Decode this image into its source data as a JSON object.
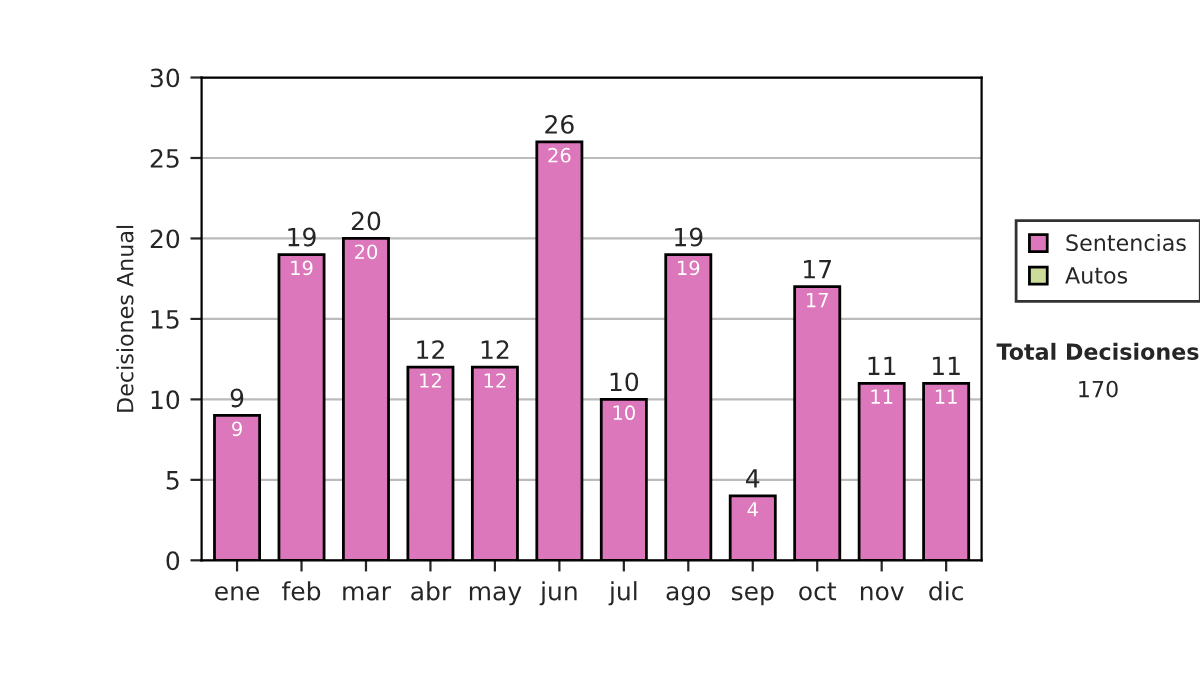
{
  "chart_data": {
    "type": "bar",
    "ylabel": "Decisiones Anual",
    "categories": [
      "ene",
      "feb",
      "mar",
      "abr",
      "may",
      "jun",
      "jul",
      "ago",
      "sep",
      "oct",
      "nov",
      "dic"
    ],
    "series": [
      {
        "name": "Sentencias",
        "color": "#dd77bb",
        "values": [
          9,
          19,
          20,
          12,
          12,
          26,
          10,
          19,
          4,
          17,
          11,
          11
        ],
        "value_labels": [
          "9",
          "19",
          "20",
          "12",
          "12",
          "26",
          "10",
          "19",
          "4",
          "17",
          "11",
          "11"
        ]
      },
      {
        "name": "Autos",
        "color": "#ccdd99",
        "values": [
          0,
          0,
          0,
          0,
          0,
          0,
          0,
          0,
          0,
          0,
          0,
          0
        ]
      }
    ],
    "stacked": true,
    "totals": [
      "9",
      "19",
      "20",
      "12",
      "12",
      "26",
      "10",
      "19",
      "4",
      "17",
      "11",
      "11"
    ],
    "ylim": [
      0,
      30
    ],
    "yticks": [
      0,
      5,
      10,
      15,
      20,
      25,
      30
    ],
    "grid": "y",
    "legend": "right",
    "annotations": [
      "Total Decisiones",
      "170"
    ]
  }
}
